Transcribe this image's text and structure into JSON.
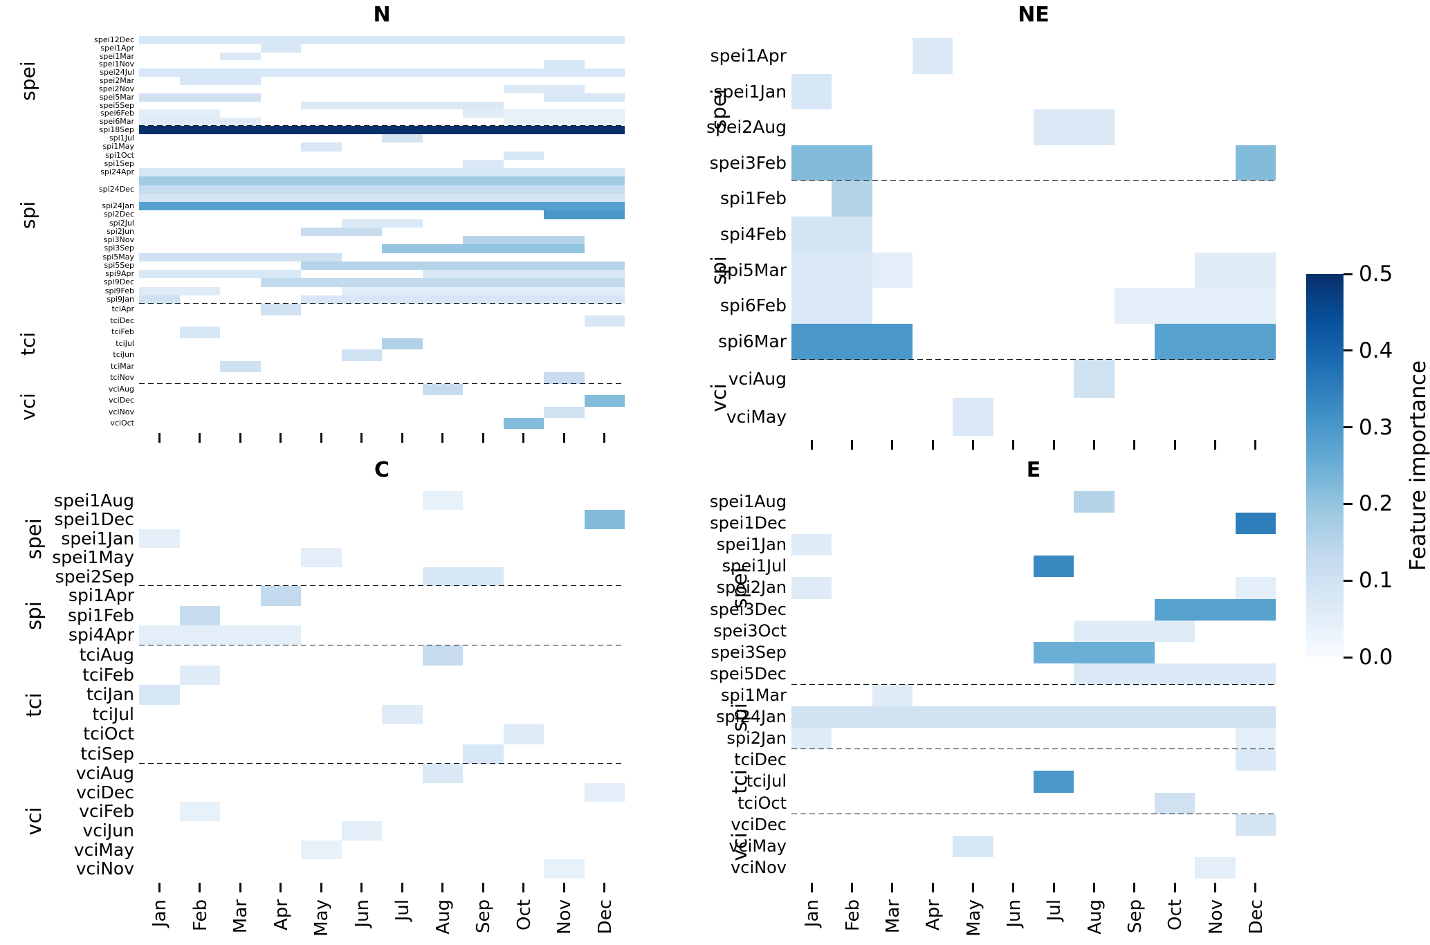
{
  "figure": {
    "background": "#ffffff"
  },
  "colorbar": {
    "label": "Feature importance",
    "ticks": [
      0.5,
      0.4,
      0.3,
      0.2,
      0.1,
      0.0
    ],
    "vmin": 0.0,
    "vmax": 0.5,
    "colormap": "Blues",
    "gradient": [
      "#f7fbff",
      "#deebf7",
      "#c6dbef",
      "#9ecae1",
      "#6baed6",
      "#4292c6",
      "#2171b5",
      "#08519c",
      "#08306b"
    ]
  },
  "chart_data": {
    "type": "heatmap",
    "title": "",
    "value_name": "Feature importance",
    "x_categories": [
      "Jan",
      "Feb",
      "Mar",
      "Apr",
      "May",
      "Jun",
      "Jul",
      "Aug",
      "Sep",
      "Oct",
      "Nov",
      "Dec"
    ],
    "value_range": [
      0.0,
      0.5
    ],
    "panels": [
      {
        "id": "N",
        "title": "N",
        "groups": [
          {
            "name": "spei",
            "rows": [
              {
                "label": "spei12Dec",
                "cells": {
                  "all": 0.08
                }
              },
              {
                "label": "spei1Apr",
                "cells": {
                  "Apr": 0.08
                }
              },
              {
                "label": "spei1Mar",
                "cells": {
                  "Mar": 0.07
                }
              },
              {
                "label": "spei1Nov",
                "cells": {
                  "Nov": 0.08
                }
              },
              {
                "label": "spei24Jul",
                "cells": {
                  "all": 0.08
                }
              },
              {
                "label": "spei2Mar",
                "cells": {
                  "Feb": 0.08,
                  "Mar": 0.08
                }
              },
              {
                "label": "spei2Nov",
                "cells": {
                  "Oct": 0.07,
                  "Nov": 0.07
                }
              },
              {
                "label": "spei5Mar",
                "cells": {
                  "Jan": 0.1,
                  "Feb": 0.1,
                  "Mar": 0.1,
                  "Nov": 0.08,
                  "Dec": 0.08
                }
              },
              {
                "label": "spei5Sep",
                "cells": {
                  "May": 0.07,
                  "Jun": 0.07,
                  "Jul": 0.07,
                  "Aug": 0.07,
                  "Sep": 0.07
                }
              },
              {
                "label": "spei6Feb",
                "cells": {
                  "Jan": 0.05,
                  "Feb": 0.05,
                  "Sep": 0.06,
                  "Oct": 0.04,
                  "Nov": 0.04,
                  "Dec": 0.04
                }
              },
              {
                "label": "spei6Mar",
                "cells": {
                  "Jan": 0.06,
                  "Feb": 0.06,
                  "Mar": 0.06,
                  "Oct": 0.04,
                  "Nov": 0.04,
                  "Dec": 0.04
                }
              }
            ]
          },
          {
            "name": "spi",
            "rows": [
              {
                "label": "spi18Sep",
                "cells": {
                  "all": 0.5
                }
              },
              {
                "label": "spi1Jul",
                "cells": {
                  "Jul": 0.09
                }
              },
              {
                "label": "spi1May",
                "cells": {
                  "May": 0.08
                }
              },
              {
                "label": "spi1Oct",
                "cells": {
                  "Oct": 0.08
                }
              },
              {
                "label": "spi1Sep",
                "cells": {
                  "Sep": 0.07
                }
              },
              {
                "label": "spi24Apr",
                "cells": {
                  "all": 0.08
                }
              },
              {
                "label": "",
                "cells": {
                  "all": 0.18
                }
              },
              {
                "label": "spi24Dec",
                "cells": {
                  "all": 0.12
                }
              },
              {
                "label": "",
                "cells": {
                  "all": 0.09
                }
              },
              {
                "label": "spi24Jan",
                "cells": {
                  "all": 0.28
                }
              },
              {
                "label": "spi2Dec",
                "cells": {
                  "Nov": 0.3,
                  "Dec": 0.3
                }
              },
              {
                "label": "spi2Jul",
                "cells": {
                  "Jun": 0.07,
                  "Jul": 0.07
                }
              },
              {
                "label": "spi2Jun",
                "cells": {
                  "May": 0.12,
                  "Jun": 0.12
                }
              },
              {
                "label": "spi3Nov",
                "cells": {
                  "Sep": 0.15,
                  "Oct": 0.15,
                  "Nov": 0.15
                }
              },
              {
                "label": "spi3Sep",
                "cells": {
                  "Jul": 0.2,
                  "Aug": 0.2,
                  "Sep": 0.2,
                  "Oct": 0.2,
                  "Nov": 0.2
                }
              },
              {
                "label": "spi5May",
                "cells": {
                  "Jan": 0.1,
                  "Feb": 0.1,
                  "Mar": 0.1,
                  "Apr": 0.1,
                  "May": 0.1
                }
              },
              {
                "label": "spi5Sep",
                "cells": {
                  "May": 0.15,
                  "Jun": 0.15,
                  "Jul": 0.15,
                  "Aug": 0.15,
                  "Sep": 0.15,
                  "Oct": 0.15,
                  "Nov": 0.15,
                  "Dec": 0.15
                }
              },
              {
                "label": "spi9Apr",
                "cells": {
                  "Jan": 0.08,
                  "Feb": 0.08,
                  "Mar": 0.08,
                  "Apr": 0.08,
                  "Aug": 0.08,
                  "Sep": 0.08,
                  "Oct": 0.08,
                  "Nov": 0.08,
                  "Dec": 0.08
                }
              },
              {
                "label": "spi9Dec",
                "cells": {
                  "Apr": 0.13,
                  "May": 0.13,
                  "Jun": 0.13,
                  "Jul": 0.13,
                  "Aug": 0.13,
                  "Sep": 0.13,
                  "Oct": 0.13,
                  "Nov": 0.13,
                  "Dec": 0.13
                }
              },
              {
                "label": "spi9Feb",
                "cells": {
                  "Jan": 0.06,
                  "Feb": 0.06,
                  "Jun": 0.05,
                  "Jul": 0.05,
                  "Aug": 0.05,
                  "Sep": 0.05,
                  "Oct": 0.05,
                  "Nov": 0.05,
                  "Dec": 0.05
                }
              },
              {
                "label": "spi9Jan",
                "cells": {
                  "Jan": 0.1,
                  "May": 0.08,
                  "Jun": 0.08,
                  "Jul": 0.08,
                  "Aug": 0.08,
                  "Sep": 0.08,
                  "Oct": 0.08,
                  "Nov": 0.08,
                  "Dec": 0.08
                }
              }
            ]
          },
          {
            "name": "tci",
            "rows": [
              {
                "label": "tciApr",
                "cells": {
                  "Apr": 0.1
                }
              },
              {
                "label": "tciDec",
                "cells": {
                  "Dec": 0.08
                }
              },
              {
                "label": "tciFeb",
                "cells": {
                  "Feb": 0.08
                }
              },
              {
                "label": "tciJul",
                "cells": {
                  "Jul": 0.16
                }
              },
              {
                "label": "tciJun",
                "cells": {
                  "Jun": 0.1
                }
              },
              {
                "label": "tciMar",
                "cells": {
                  "Mar": 0.1
                }
              },
              {
                "label": "tciNov",
                "cells": {
                  "Nov": 0.12
                }
              }
            ]
          },
          {
            "name": "vci",
            "rows": [
              {
                "label": "vciAug",
                "cells": {
                  "Aug": 0.12
                }
              },
              {
                "label": "vciDec",
                "cells": {
                  "Dec": 0.22
                }
              },
              {
                "label": "vciNov",
                "cells": {
                  "Nov": 0.1
                }
              },
              {
                "label": "vciOct",
                "cells": {
                  "Oct": 0.22
                }
              }
            ]
          }
        ]
      },
      {
        "id": "NE",
        "title": "NE",
        "groups": [
          {
            "name": "spei",
            "rows": [
              {
                "label": "spei1Apr",
                "cells": {
                  "Apr": 0.07
                }
              },
              {
                "label": "spei1Jan",
                "cells": {
                  "Jan": 0.08
                }
              },
              {
                "label": "spei2Aug",
                "cells": {
                  "Jul": 0.07,
                  "Aug": 0.07
                }
              },
              {
                "label": "spei3Feb",
                "cells": {
                  "Jan": 0.22,
                  "Feb": 0.22,
                  "Dec": 0.22
                }
              }
            ]
          },
          {
            "name": "spi",
            "rows": [
              {
                "label": "spi1Feb",
                "cells": {
                  "Feb": 0.15
                }
              },
              {
                "label": "spi4Feb",
                "cells": {
                  "Jan": 0.09,
                  "Feb": 0.09
                }
              },
              {
                "label": "spi5Mar",
                "cells": {
                  "Jan": 0.07,
                  "Feb": 0.07,
                  "Mar": 0.05,
                  "Nov": 0.06,
                  "Dec": 0.06
                }
              },
              {
                "label": "spi6Feb",
                "cells": {
                  "Jan": 0.07,
                  "Feb": 0.07,
                  "Sep": 0.05,
                  "Oct": 0.05,
                  "Nov": 0.05,
                  "Dec": 0.05
                }
              },
              {
                "label": "spi6Mar",
                "cells": {
                  "Jan": 0.3,
                  "Feb": 0.3,
                  "Mar": 0.3,
                  "Oct": 0.28,
                  "Nov": 0.28,
                  "Dec": 0.28
                }
              }
            ]
          },
          {
            "name": "vci",
            "rows": [
              {
                "label": "vciAug",
                "cells": {
                  "Aug": 0.1
                }
              },
              {
                "label": "vciMay",
                "cells": {
                  "May": 0.07
                }
              }
            ]
          }
        ]
      },
      {
        "id": "C",
        "title": "C",
        "groups": [
          {
            "name": "spei",
            "rows": [
              {
                "label": "spei1Aug",
                "cells": {
                  "Aug": 0.04
                }
              },
              {
                "label": "spei1Dec",
                "cells": {
                  "Dec": 0.22
                }
              },
              {
                "label": "spei1Jan",
                "cells": {
                  "Jan": 0.05
                }
              },
              {
                "label": "spei1May",
                "cells": {
                  "May": 0.05
                }
              },
              {
                "label": "spei2Sep",
                "cells": {
                  "Aug": 0.08,
                  "Sep": 0.08
                }
              }
            ]
          },
          {
            "name": "spi",
            "rows": [
              {
                "label": "spi1Apr",
                "cells": {
                  "Apr": 0.13
                }
              },
              {
                "label": "spi1Feb",
                "cells": {
                  "Feb": 0.12
                }
              },
              {
                "label": "spi4Apr",
                "cells": {
                  "Jan": 0.05,
                  "Feb": 0.05,
                  "Mar": 0.05,
                  "Apr": 0.05
                }
              }
            ]
          },
          {
            "name": "tci",
            "rows": [
              {
                "label": "tciAug",
                "cells": {
                  "Aug": 0.12
                }
              },
              {
                "label": "tciFeb",
                "cells": {
                  "Feb": 0.06
                }
              },
              {
                "label": "tciJan",
                "cells": {
                  "Jan": 0.08
                }
              },
              {
                "label": "tciJul",
                "cells": {
                  "Jul": 0.06
                }
              },
              {
                "label": "tciOct",
                "cells": {
                  "Oct": 0.06
                }
              },
              {
                "label": "tciSep",
                "cells": {
                  "Sep": 0.08
                }
              }
            ]
          },
          {
            "name": "vci",
            "rows": [
              {
                "label": "vciAug",
                "cells": {
                  "Aug": 0.07
                }
              },
              {
                "label": "vciDec",
                "cells": {
                  "Dec": 0.05
                }
              },
              {
                "label": "vciFeb",
                "cells": {
                  "Feb": 0.04
                }
              },
              {
                "label": "vciJun",
                "cells": {
                  "Jun": 0.05
                }
              },
              {
                "label": "vciMay",
                "cells": {
                  "May": 0.04
                }
              },
              {
                "label": "vciNov",
                "cells": {
                  "Nov": 0.04
                }
              }
            ]
          }
        ]
      },
      {
        "id": "E",
        "title": "E",
        "groups": [
          {
            "name": "spei",
            "rows": [
              {
                "label": "spei1Aug",
                "cells": {
                  "Aug": 0.15
                }
              },
              {
                "label": "spei1Dec",
                "cells": {
                  "Dec": 0.35
                }
              },
              {
                "label": "spei1Jan",
                "cells": {
                  "Jan": 0.06
                }
              },
              {
                "label": "spei1Jul",
                "cells": {
                  "Jul": 0.33
                }
              },
              {
                "label": "spei2Jan",
                "cells": {
                  "Jan": 0.06,
                  "Dec": 0.05
                }
              },
              {
                "label": "spei3Dec",
                "cells": {
                  "Oct": 0.28,
                  "Nov": 0.28,
                  "Dec": 0.28
                }
              },
              {
                "label": "spei3Oct",
                "cells": {
                  "Aug": 0.06,
                  "Sep": 0.06,
                  "Oct": 0.06
                }
              },
              {
                "label": "spei3Sep",
                "cells": {
                  "Jul": 0.25,
                  "Aug": 0.25,
                  "Sep": 0.25
                }
              },
              {
                "label": "spei5Dec",
                "cells": {
                  "Aug": 0.07,
                  "Sep": 0.07,
                  "Oct": 0.07,
                  "Nov": 0.07,
                  "Dec": 0.07
                }
              }
            ]
          },
          {
            "name": "spi",
            "rows": [
              {
                "label": "spi1Mar",
                "cells": {
                  "Mar": 0.06
                }
              },
              {
                "label": "spi24Jan",
                "cells": {
                  "all": 0.1
                }
              },
              {
                "label": "spi2Jan",
                "cells": {
                  "Jan": 0.06,
                  "Dec": 0.05
                }
              }
            ]
          },
          {
            "name": "tci",
            "rows": [
              {
                "label": "tciDec",
                "cells": {
                  "Dec": 0.07
                }
              },
              {
                "label": "tciJul",
                "cells": {
                  "Jul": 0.3
                }
              },
              {
                "label": "tciOct",
                "cells": {
                  "Oct": 0.1
                }
              }
            ]
          },
          {
            "name": "vci",
            "rows": [
              {
                "label": "vciDec",
                "cells": {
                  "Dec": 0.09
                }
              },
              {
                "label": "vciMay",
                "cells": {
                  "May": 0.08
                }
              },
              {
                "label": "vciNov",
                "cells": {
                  "Nov": 0.05
                }
              }
            ]
          }
        ]
      }
    ]
  }
}
